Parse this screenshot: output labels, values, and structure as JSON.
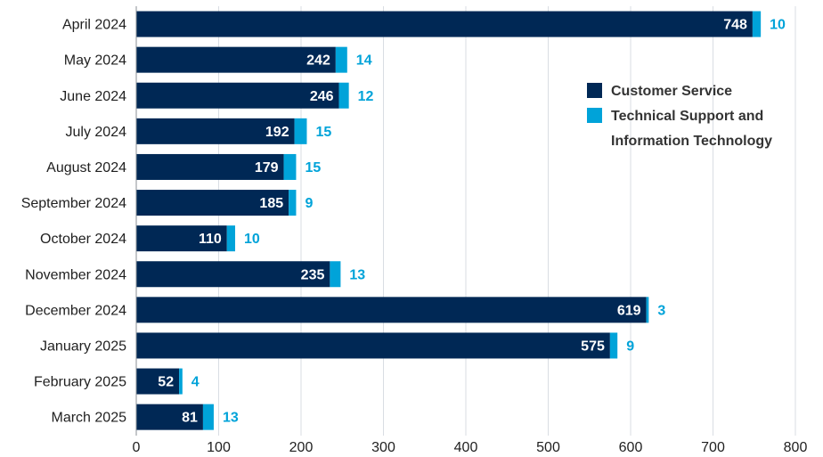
{
  "chart_data": {
    "type": "bar",
    "orientation": "horizontal",
    "stacked": true,
    "categories": [
      "April 2024",
      "May 2024",
      "June 2024",
      "July 2024",
      "August 2024",
      "September 2024",
      "October 2024",
      "November 2024",
      "December 2024",
      "January 2025",
      "February 2025",
      "March 2025"
    ],
    "series": [
      {
        "name": "Customer Service",
        "color": "#002855",
        "values": [
          748,
          242,
          246,
          192,
          179,
          185,
          110,
          235,
          619,
          575,
          52,
          81
        ]
      },
      {
        "name": "Technical Support and Information Technology",
        "color": "#00A3D9",
        "values": [
          10,
          14,
          12,
          15,
          15,
          9,
          10,
          13,
          3,
          9,
          4,
          13
        ]
      }
    ],
    "legend_lines": [
      [
        "Customer Service"
      ],
      [
        "Technical Support and",
        "Information Technology"
      ]
    ],
    "xlim": [
      0,
      800
    ],
    "xticks": [
      0,
      100,
      200,
      300,
      400,
      500,
      600,
      700,
      800
    ],
    "grid": true,
    "legend_position": "right"
  }
}
